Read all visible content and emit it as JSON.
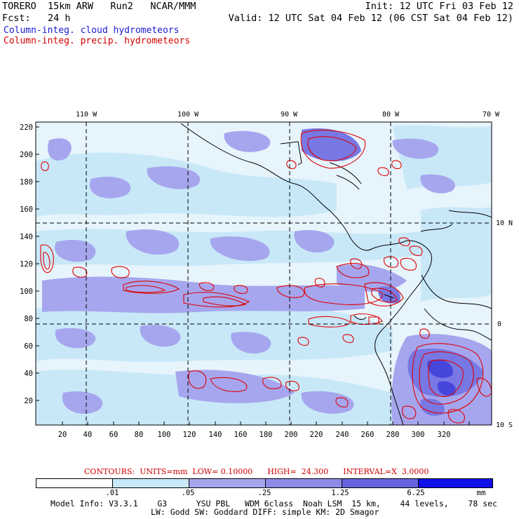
{
  "header": {
    "line1_left": "TORERO  15km ARW   Run2   NCAR/MMM",
    "line1_right": "Init: 12 UTC Fri 03 Feb 12",
    "line2_left": "Fcst:   24 h",
    "line2_right": "Valid: 12 UTC Sat 04 Feb 12 (06 CST Sat 04 Feb 12)"
  },
  "legend": {
    "cloud": "Column-integ. cloud hydrometeors",
    "precip": "Column-integ. precip. hydrometeors"
  },
  "map": {
    "longitude_labels": [
      "110 W",
      "100 W",
      "90 W",
      "80 W",
      "70 W"
    ],
    "latitude_labels": [
      "10 N",
      "0",
      "10 S"
    ],
    "grid_y_labels": [
      "220",
      "200",
      "180",
      "160",
      "140",
      "120",
      "100",
      "80",
      "60",
      "40",
      "20"
    ],
    "grid_x_labels": [
      "20",
      "40",
      "60",
      "80",
      "100",
      "120",
      "140",
      "160",
      "180",
      "200",
      "220",
      "240",
      "260",
      "280",
      "300",
      "320"
    ],
    "colors": {
      "level1": "#e6f4fc",
      "level2": "#c8e8f8",
      "level3": "#a6a6ee",
      "level4": "#8c8ce8",
      "level5": "#6464e0",
      "level6": "#3c3cdc",
      "precip_contour": "#e00000",
      "coast": "#000000"
    }
  },
  "contours_text": {
    "label": "CONTOURS:  UNITS=mm  LOW= 0.10000      HIGH=  24.300      INTERVAL=X  3.0000"
  },
  "colorbar": {
    "labels": [
      ".01",
      ".05",
      ".25",
      "1.25",
      "6.25"
    ],
    "units": "mm",
    "colors": [
      "#ffffff",
      "#c8e8f8",
      "#a6a6ee",
      "#8c8ce8",
      "#6464e0",
      "#3c3cdc",
      "#1010e8"
    ]
  },
  "footer": {
    "line1": "Model Info: V3.3.1    G3      YSU PBL   WDM 6class  Noah LSM  15 km,    44 levels,    78 sec",
    "line2": "LW: Godd SW: Goddard DIFF: simple KM: 2D Smagor"
  }
}
